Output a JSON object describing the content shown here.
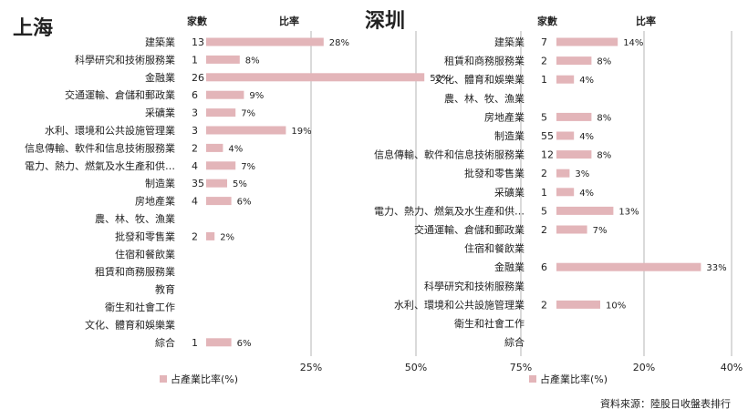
{
  "colors": {
    "bar": "#e3b5b9",
    "grid": "#b5b5b5",
    "text": "#222222"
  },
  "column_headers": {
    "count": "家數",
    "ratio": "比率"
  },
  "source_note": "資料來源：陸股日收盤表排行",
  "chart_data": [
    {
      "type": "bar",
      "title": "上海",
      "legend": "占產業比率(%)",
      "legend_position": "bottom-left",
      "grid": true,
      "xlim": [
        0,
        75
      ],
      "xticks": [
        25,
        50,
        75
      ],
      "xtick_labels": [
        "25%",
        "50%",
        "75%"
      ],
      "categories": [
        "建築業",
        "科學研究和技術服務業",
        "金融業",
        "交通運輸、倉儲和郵政業",
        "采礦業",
        "水利、環境和公共設施管理業",
        "信息傳輸、軟件和信息技術服務業",
        "電力、熱力、燃氣及水生產和供…",
        "制造業",
        "房地產業",
        "農、林、牧、漁業",
        "批發和零售業",
        "住宿和餐飲業",
        "租賃和商務服務業",
        "教育",
        "衛生和社會工作",
        "文化、體育和娛樂業",
        "綜合"
      ],
      "counts": [
        "13",
        "1",
        "26",
        "6",
        "3",
        "3",
        "2",
        "4",
        "35",
        "4",
        "",
        "2",
        "",
        "",
        "",
        "",
        "",
        "1"
      ],
      "values": [
        28,
        8,
        52,
        9,
        7,
        19,
        4,
        7,
        5,
        6,
        null,
        2,
        null,
        null,
        null,
        null,
        null,
        6
      ],
      "value_labels": [
        "28%",
        "8%",
        "52%",
        "9%",
        "7%",
        "19%",
        "4%",
        "7%",
        "5%",
        "6%",
        "",
        "2%",
        "",
        "",
        "",
        "",
        "",
        "6%"
      ]
    },
    {
      "type": "bar",
      "title": "深圳",
      "legend": "占產業比率(%)",
      "legend_position": "bottom-left",
      "grid": true,
      "xlim": [
        0,
        40
      ],
      "xticks": [
        20,
        40
      ],
      "xtick_labels": [
        "20%",
        "40%"
      ],
      "categories": [
        "建築業",
        "租賃和商務服務業",
        "文化、體育和娛樂業",
        "農、林、牧、漁業",
        "房地產業",
        "制造業",
        "信息傳輸、軟件和信息技術服務業",
        "批發和零售業",
        "采礦業",
        "電力、熱力、燃氣及水生產和供…",
        "交通運輸、倉儲和郵政業",
        "住宿和餐飲業",
        "金融業",
        "科學研究和技術服務業",
        "水利、環境和公共設施管理業",
        "衛生和社會工作",
        "綜合"
      ],
      "counts": [
        "7",
        "2",
        "1",
        "",
        "5",
        "55",
        "12",
        "2",
        "1",
        "5",
        "2",
        "",
        "6",
        "",
        "2",
        "",
        ""
      ],
      "values": [
        14,
        8,
        4,
        null,
        8,
        4,
        8,
        3,
        4,
        13,
        7,
        null,
        33,
        null,
        10,
        null,
        null
      ],
      "value_labels": [
        "14%",
        "8%",
        "4%",
        "",
        "8%",
        "4%",
        "8%",
        "3%",
        "4%",
        "13%",
        "7%",
        "",
        "33%",
        "",
        "10%",
        "",
        ""
      ]
    }
  ]
}
